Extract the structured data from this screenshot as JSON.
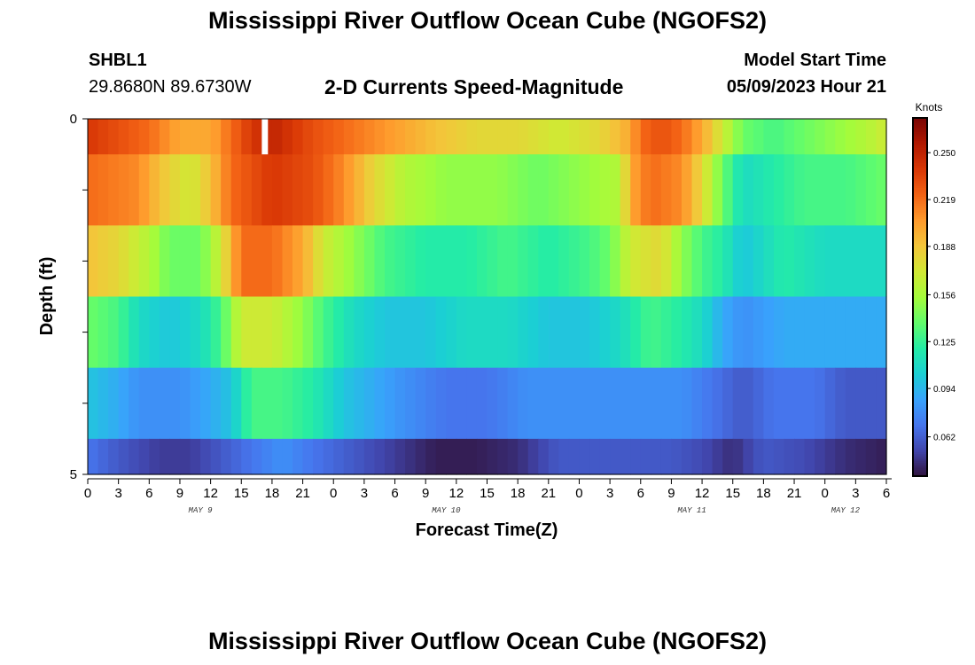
{
  "header": {
    "title": "Mississippi River Outflow Ocean Cube (NGOFS2)",
    "station": "SHBL1",
    "coords": "29.8680N  89.6730W",
    "variable": "2-D Currents Speed-Magnitude",
    "model_start_label": "Model Start Time",
    "model_start_value": "05/09/2023 Hour 21"
  },
  "footer": {
    "title": "Mississippi River Outflow Ocean Cube (NGOFS2)"
  },
  "chart_data": {
    "type": "heatmap",
    "title": "2-D Currents Speed-Magnitude",
    "xlabel": "Forecast Time(Z)",
    "ylabel": "Depth (ft)",
    "x_ticks": [
      "0",
      "3",
      "6",
      "9",
      "12",
      "15",
      "18",
      "21",
      "0",
      "3",
      "6",
      "9",
      "12",
      "15",
      "18",
      "21",
      "0",
      "3",
      "6",
      "9",
      "12",
      "15",
      "18",
      "21",
      "0",
      "3",
      "6"
    ],
    "x_range_hours": [
      0,
      78
    ],
    "date_labels": [
      {
        "text": "MAY 9",
        "hour": 11
      },
      {
        "text": "MAY 10",
        "hour": 35
      },
      {
        "text": "MAY 11",
        "hour": 59
      },
      {
        "text": "MAY 12",
        "hour": 74
      }
    ],
    "y_ticks": [
      "0",
      "5"
    ],
    "y_range": [
      0,
      5
    ],
    "colorbar": {
      "unit": "Knots",
      "ticks": [
        "0.250",
        "0.219",
        "0.188",
        "0.156",
        "0.125",
        "0.094",
        "0.062"
      ],
      "tick_values": [
        0.25,
        0.219,
        0.188,
        0.156,
        0.125,
        0.094,
        0.062
      ],
      "range": [
        0.036,
        0.273
      ],
      "colors": [
        "#30123b",
        "#4145ab",
        "#4675ed",
        "#39a2fc",
        "#1bcfd4",
        "#24eca6",
        "#61fc6c",
        "#a4fc3b",
        "#d1e834",
        "#f3c63a",
        "#fe9b2d",
        "#f36315",
        "#d93806",
        "#b11901",
        "#7a0403"
      ]
    },
    "gap": {
      "layer": 0,
      "start_hour": 17,
      "end_hour": 17.6
    },
    "layers": [
      {
        "depth_range": [
          0,
          0.5
        ],
        "keys": [
          [
            0,
            0.24
          ],
          [
            3,
            0.23
          ],
          [
            6,
            0.22
          ],
          [
            9,
            0.2
          ],
          [
            12,
            0.2
          ],
          [
            14,
            0.22
          ],
          [
            16,
            0.24
          ],
          [
            18,
            0.25
          ],
          [
            20,
            0.24
          ],
          [
            22,
            0.23
          ],
          [
            25,
            0.22
          ],
          [
            28,
            0.21
          ],
          [
            31,
            0.2
          ],
          [
            34,
            0.19
          ],
          [
            38,
            0.18
          ],
          [
            42,
            0.18
          ],
          [
            46,
            0.17
          ],
          [
            50,
            0.18
          ],
          [
            53,
            0.2
          ],
          [
            54,
            0.22
          ],
          [
            56,
            0.23
          ],
          [
            58,
            0.22
          ],
          [
            60,
            0.2
          ],
          [
            62,
            0.17
          ],
          [
            64,
            0.14
          ],
          [
            67,
            0.13
          ],
          [
            70,
            0.14
          ],
          [
            73,
            0.15
          ],
          [
            76,
            0.16
          ],
          [
            78,
            0.17
          ]
        ]
      },
      {
        "depth_range": [
          0.5,
          1.5
        ],
        "keys": [
          [
            0,
            0.22
          ],
          [
            5,
            0.21
          ],
          [
            7,
            0.19
          ],
          [
            10,
            0.17
          ],
          [
            12,
            0.19
          ],
          [
            14,
            0.22
          ],
          [
            16,
            0.23
          ],
          [
            18,
            0.24
          ],
          [
            22,
            0.23
          ],
          [
            25,
            0.21
          ],
          [
            28,
            0.18
          ],
          [
            31,
            0.16
          ],
          [
            35,
            0.15
          ],
          [
            40,
            0.15
          ],
          [
            44,
            0.14
          ],
          [
            48,
            0.15
          ],
          [
            52,
            0.16
          ],
          [
            53,
            0.2
          ],
          [
            55,
            0.22
          ],
          [
            58,
            0.21
          ],
          [
            60,
            0.18
          ],
          [
            62,
            0.14
          ],
          [
            64,
            0.11
          ],
          [
            67,
            0.12
          ],
          [
            70,
            0.13
          ],
          [
            74,
            0.13
          ],
          [
            78,
            0.14
          ]
        ]
      },
      {
        "depth_range": [
          1.5,
          2.5
        ],
        "keys": [
          [
            0,
            0.19
          ],
          [
            3,
            0.18
          ],
          [
            6,
            0.16
          ],
          [
            8,
            0.14
          ],
          [
            11,
            0.14
          ],
          [
            13,
            0.17
          ],
          [
            15,
            0.22
          ],
          [
            18,
            0.22
          ],
          [
            21,
            0.2
          ],
          [
            23,
            0.17
          ],
          [
            26,
            0.15
          ],
          [
            29,
            0.13
          ],
          [
            33,
            0.12
          ],
          [
            37,
            0.12
          ],
          [
            41,
            0.13
          ],
          [
            45,
            0.12
          ],
          [
            49,
            0.13
          ],
          [
            51,
            0.14
          ],
          [
            53,
            0.17
          ],
          [
            56,
            0.18
          ],
          [
            58,
            0.15
          ],
          [
            60,
            0.13
          ],
          [
            62,
            0.12
          ],
          [
            64,
            0.1
          ],
          [
            68,
            0.12
          ],
          [
            72,
            0.11
          ],
          [
            78,
            0.11
          ]
        ]
      },
      {
        "depth_range": [
          2.5,
          3.5
        ],
        "keys": [
          [
            0,
            0.14
          ],
          [
            3,
            0.13
          ],
          [
            5,
            0.11
          ],
          [
            8,
            0.1
          ],
          [
            11,
            0.11
          ],
          [
            13,
            0.13
          ],
          [
            15,
            0.17
          ],
          [
            18,
            0.17
          ],
          [
            21,
            0.15
          ],
          [
            23,
            0.13
          ],
          [
            26,
            0.11
          ],
          [
            29,
            0.1
          ],
          [
            33,
            0.1
          ],
          [
            37,
            0.11
          ],
          [
            41,
            0.11
          ],
          [
            45,
            0.1
          ],
          [
            49,
            0.1
          ],
          [
            52,
            0.11
          ],
          [
            55,
            0.13
          ],
          [
            58,
            0.12
          ],
          [
            60,
            0.11
          ],
          [
            62,
            0.09
          ],
          [
            64,
            0.08
          ],
          [
            68,
            0.09
          ],
          [
            72,
            0.09
          ],
          [
            78,
            0.09
          ]
        ]
      },
      {
        "depth_range": [
          3.5,
          4.5
        ],
        "keys": [
          [
            0,
            0.1
          ],
          [
            3,
            0.09
          ],
          [
            5,
            0.08
          ],
          [
            9,
            0.08
          ],
          [
            12,
            0.09
          ],
          [
            14,
            0.1
          ],
          [
            16,
            0.13
          ],
          [
            19,
            0.13
          ],
          [
            22,
            0.12
          ],
          [
            25,
            0.1
          ],
          [
            28,
            0.09
          ],
          [
            31,
            0.08
          ],
          [
            35,
            0.07
          ],
          [
            39,
            0.07
          ],
          [
            43,
            0.08
          ],
          [
            47,
            0.08
          ],
          [
            52,
            0.08
          ],
          [
            56,
            0.08
          ],
          [
            58,
            0.08
          ],
          [
            61,
            0.07
          ],
          [
            64,
            0.06
          ],
          [
            67,
            0.07
          ],
          [
            71,
            0.07
          ],
          [
            74,
            0.06
          ],
          [
            78,
            0.06
          ]
        ]
      },
      {
        "depth_range": [
          4.5,
          5
        ],
        "keys": [
          [
            0,
            0.07
          ],
          [
            3,
            0.06
          ],
          [
            7,
            0.05
          ],
          [
            10,
            0.05
          ],
          [
            13,
            0.06
          ],
          [
            16,
            0.07
          ],
          [
            19,
            0.08
          ],
          [
            22,
            0.07
          ],
          [
            26,
            0.06
          ],
          [
            30,
            0.05
          ],
          [
            34,
            0.04
          ],
          [
            38,
            0.04
          ],
          [
            42,
            0.045
          ],
          [
            46,
            0.06
          ],
          [
            50,
            0.06
          ],
          [
            54,
            0.06
          ],
          [
            57,
            0.06
          ],
          [
            60,
            0.055
          ],
          [
            63,
            0.045
          ],
          [
            66,
            0.06
          ],
          [
            70,
            0.055
          ],
          [
            74,
            0.045
          ],
          [
            78,
            0.04
          ]
        ]
      }
    ]
  }
}
